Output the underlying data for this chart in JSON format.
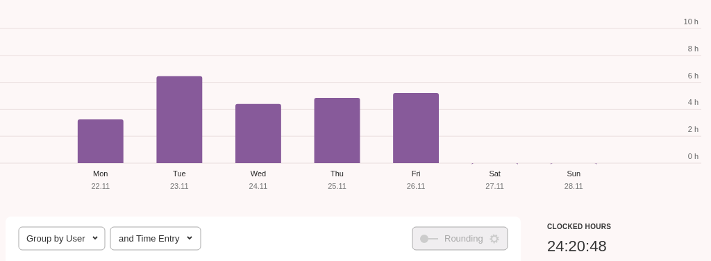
{
  "chart_data": {
    "type": "bar",
    "categories": [
      "Mon\n22.11",
      "Tue\n23.11",
      "Wed\n24.11",
      "Thu\n25.11",
      "Fri\n26.11",
      "Sat\n27.11",
      "Sun\n28.11"
    ],
    "values": [
      3.25,
      6.45,
      4.4,
      4.85,
      5.2,
      0,
      0
    ],
    "color": "#875a9a",
    "ylim": [
      0,
      10
    ],
    "yticks": [
      {
        "value": 0,
        "label": "0 h"
      },
      {
        "value": 2,
        "label": "2 h"
      },
      {
        "value": 4,
        "label": "4 h"
      },
      {
        "value": 6,
        "label": "6 h"
      },
      {
        "value": 8,
        "label": "8 h"
      },
      {
        "value": 10,
        "label": "10 h"
      }
    ],
    "grid": "y",
    "annotations": [
      "Group by User",
      "and Time Entry",
      "Rounding",
      "CLOCKED HOURS",
      "24:20:48"
    ]
  }
}
